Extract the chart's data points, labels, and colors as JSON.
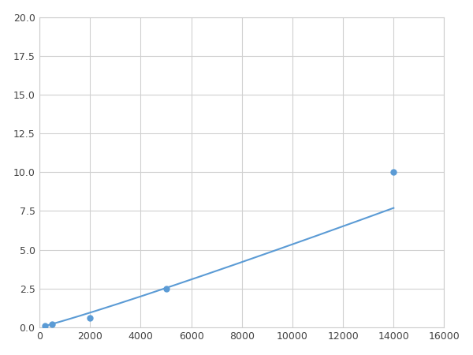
{
  "x": [
    200,
    500,
    2000,
    5000,
    14000
  ],
  "y": [
    0.1,
    0.2,
    0.6,
    2.5,
    10.0
  ],
  "line_color": "#5b9bd5",
  "marker_color": "#5b9bd5",
  "marker_size": 5,
  "line_width": 1.5,
  "xlim": [
    0,
    16000
  ],
  "ylim": [
    0,
    20.0
  ],
  "xticks": [
    0,
    2000,
    4000,
    6000,
    8000,
    10000,
    12000,
    14000,
    16000
  ],
  "yticks": [
    0.0,
    2.5,
    5.0,
    7.5,
    10.0,
    12.5,
    15.0,
    17.5,
    20.0
  ],
  "grid_color": "#d0d0d0",
  "background_color": "#ffffff",
  "figure_background": "#ffffff",
  "spine_color": "#cccccc"
}
